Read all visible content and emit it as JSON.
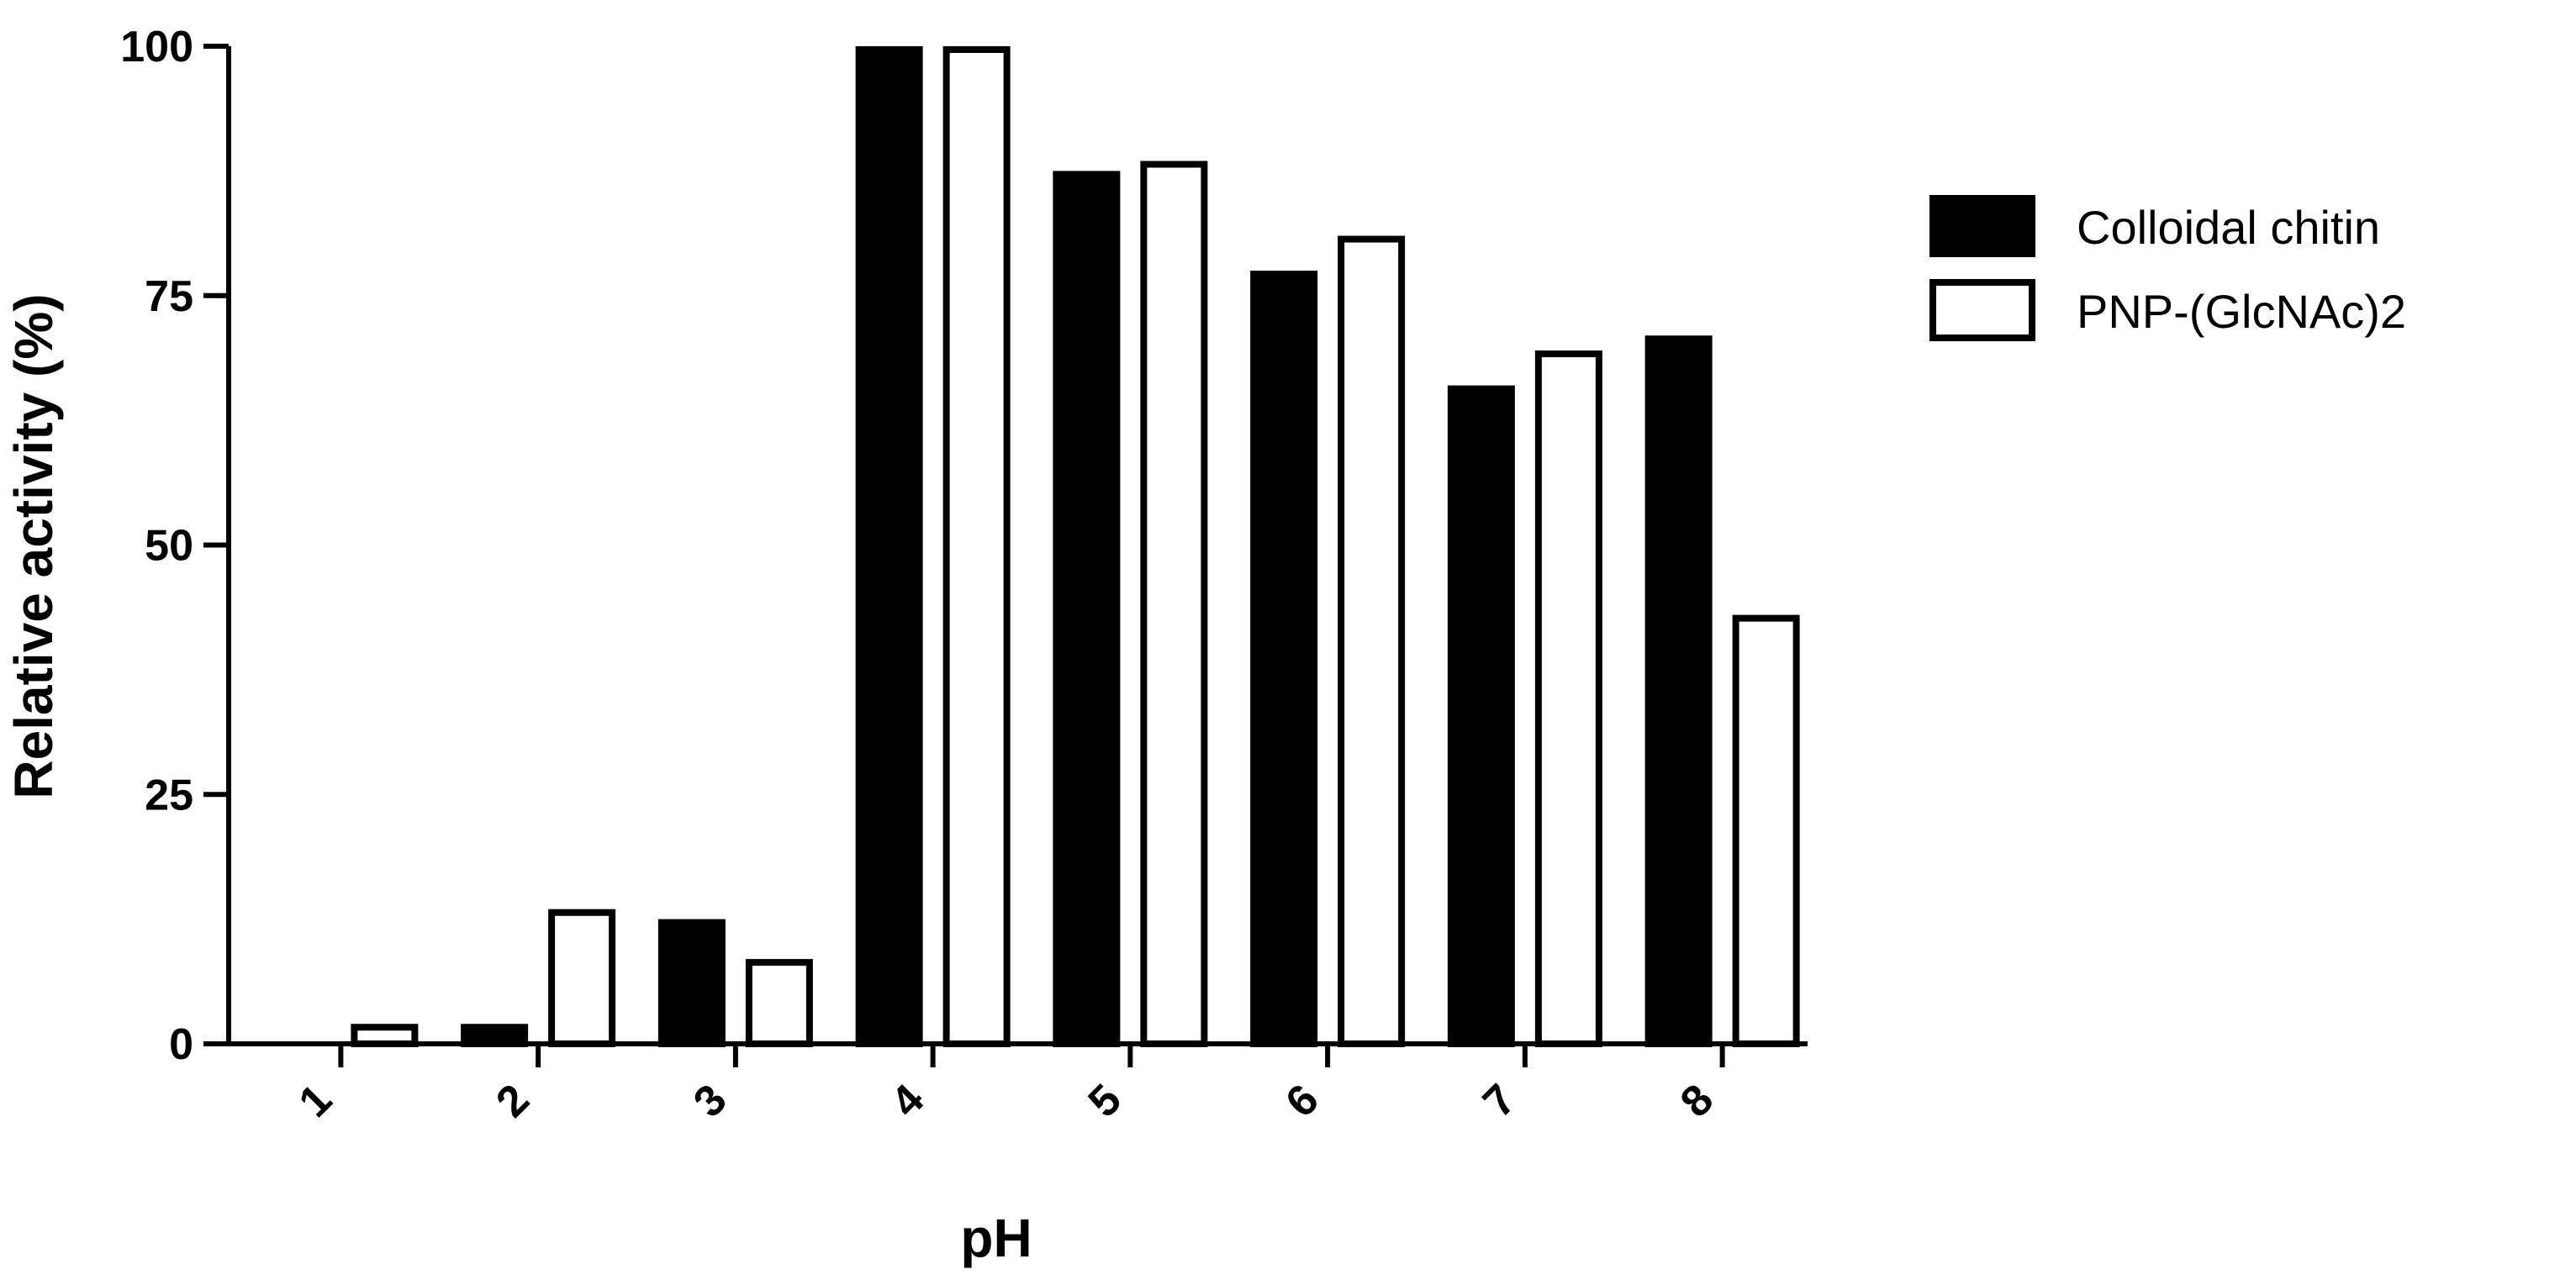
{
  "chart_data": {
    "type": "bar",
    "title": "",
    "xlabel": "pH",
    "ylabel": "Relative activity (%)",
    "categories": [
      "1",
      "2",
      "3",
      "4",
      "5",
      "6",
      "7",
      "8"
    ],
    "series": [
      {
        "name": "Colloidal chitin",
        "color": "#000000",
        "fill": "#000000",
        "values": [
          0,
          2,
          12.5,
          100,
          87.5,
          77.5,
          66,
          71
        ]
      },
      {
        "name": "PNP-(GlcNAc)2",
        "color": "#000000",
        "fill": "#ffffff",
        "values": [
          2,
          13.5,
          8.5,
          100,
          88.5,
          81,
          69.5,
          43
        ]
      }
    ],
    "yticks": [
      0,
      25,
      50,
      75,
      100
    ],
    "ylim": [
      0,
      100
    ],
    "grid": false,
    "legend": "right"
  }
}
